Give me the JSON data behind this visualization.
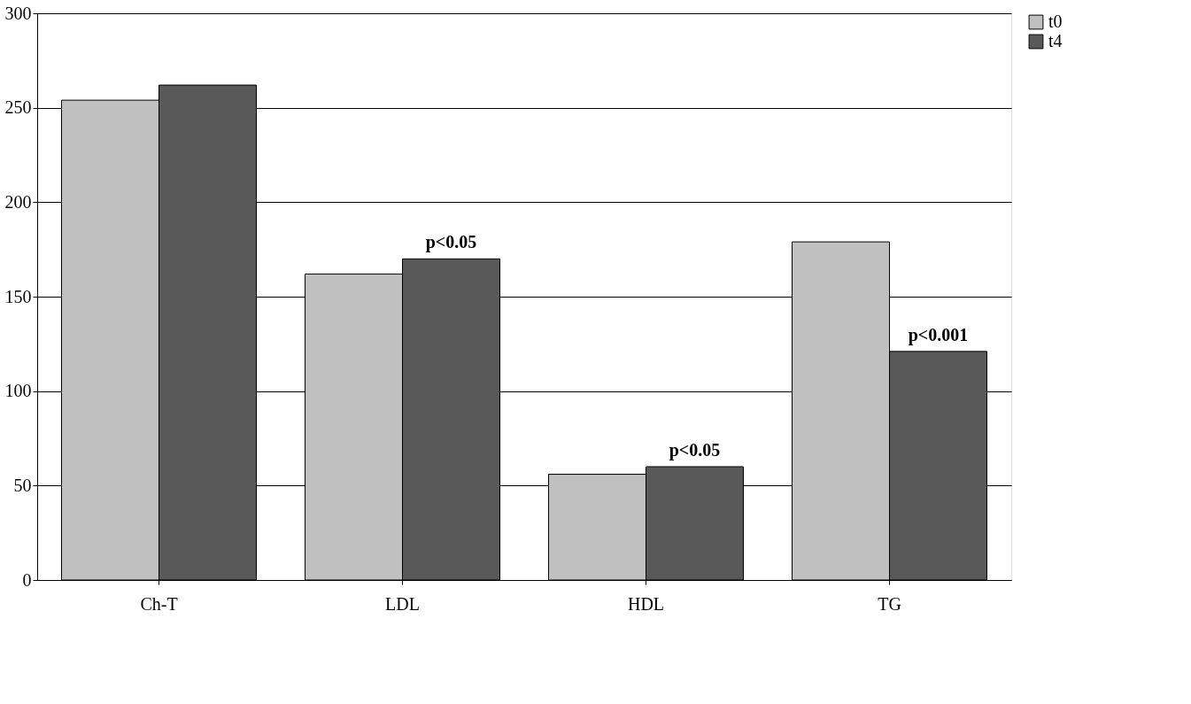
{
  "chart_data": {
    "type": "bar",
    "categories": [
      "Ch-T",
      "LDL",
      "HDL",
      "TG"
    ],
    "series": [
      {
        "name": "t0",
        "color": "#c0c0c0",
        "values": [
          254,
          162,
          56,
          179
        ]
      },
      {
        "name": "t4",
        "color": "#595959",
        "values": [
          262,
          170,
          60,
          121
        ]
      }
    ],
    "ylim": [
      0,
      300
    ],
    "yticks": [
      0,
      50,
      100,
      150,
      200,
      250,
      300
    ],
    "grid": "y",
    "legend": "right",
    "annotations": [
      {
        "text": "p<0.05",
        "x": "LDL",
        "y": 170
      },
      {
        "text": "p<0.05",
        "x": "HDL",
        "y": 60
      },
      {
        "text": "p<0.001",
        "x": "TG",
        "y": 121
      }
    ]
  }
}
